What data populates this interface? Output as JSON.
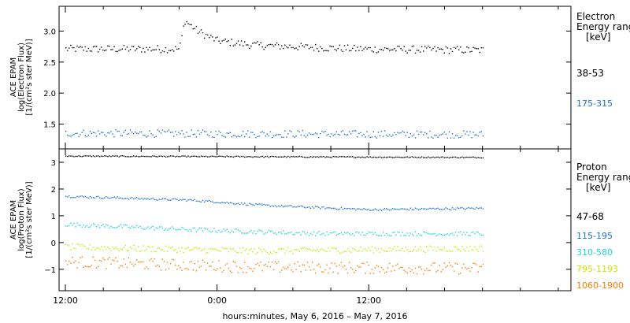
{
  "chart_data": [
    {
      "type": "scatter",
      "panel": "electron",
      "ylabel_lines": [
        "ACE EPAM",
        "log(Electron Flux)",
        "[1/(cm²s ster MeV)]"
      ],
      "y_ticks": [
        1.5,
        2.0,
        2.5,
        3.0
      ],
      "y_tick_labels": [
        "1.5",
        "2.0",
        "2.5",
        "3.0"
      ],
      "ylim": [
        1.1,
        3.4
      ],
      "legend_title_lines": [
        "Electron",
        "Energy ranges",
        "[keV]"
      ],
      "series": [
        {
          "name": "38-53",
          "color": "#000000",
          "base": 2.72,
          "noise": 0.06,
          "trend": [
            [
              0,
              2.72
            ],
            [
              9,
              2.72
            ],
            [
              9.4,
              3.18
            ],
            [
              10.5,
              3.0
            ],
            [
              12,
              2.85
            ],
            [
              15,
              2.78
            ],
            [
              23,
              2.72
            ],
            [
              33,
              2.7
            ]
          ]
        },
        {
          "name": "175-315",
          "color": "#1c6fd6",
          "base": 1.35,
          "noise": 0.06,
          "trend": [
            [
              0,
              1.36
            ],
            [
              33,
              1.34
            ]
          ]
        }
      ]
    },
    {
      "type": "scatter",
      "panel": "proton",
      "ylabel_lines": [
        "ACE EPAM",
        "log(Proton Flux)",
        "[1/(cm²s ster MeV)]"
      ],
      "y_ticks": [
        -1,
        0,
        1,
        2,
        3
      ],
      "y_tick_labels": [
        "−1",
        "0",
        "1",
        "2",
        "3"
      ],
      "ylim": [
        -1.8,
        3.5
      ],
      "legend_title_lines": [
        "Proton",
        "Energy ranges",
        "[keV]"
      ],
      "series": [
        {
          "name": "47-68",
          "color": "#000000",
          "noise": 0.02,
          "trend": [
            [
              0,
              3.25
            ],
            [
              33,
              3.2
            ]
          ]
        },
        {
          "name": "115-195",
          "color": "#1c6fd6",
          "noise": 0.04,
          "trend": [
            [
              0,
              1.75
            ],
            [
              10,
              1.6
            ],
            [
              16,
              1.4
            ],
            [
              24,
              1.25
            ],
            [
              33,
              1.3
            ]
          ]
        },
        {
          "name": "310-580",
          "color": "#1fd6d6",
          "noise": 0.08,
          "trend": [
            [
              0,
              0.7
            ],
            [
              10,
              0.5
            ],
            [
              20,
              0.35
            ],
            [
              33,
              0.35
            ]
          ]
        },
        {
          "name": "795-1193",
          "color": "#c8e600",
          "noise": 0.12,
          "trend": [
            [
              0,
              -0.15
            ],
            [
              15,
              -0.3
            ],
            [
              33,
              -0.2
            ]
          ]
        },
        {
          "name": "1060-1900",
          "color": "#ff7b00",
          "noise": 0.22,
          "trend": [
            [
              0,
              -0.7
            ],
            [
              15,
              -0.9
            ],
            [
              33,
              -0.95
            ]
          ]
        }
      ]
    }
  ],
  "x_axis": {
    "range_hours": [
      -0.5,
      40
    ],
    "data_end_hours": 33,
    "tick_hours": [
      0,
      12,
      24
    ],
    "tick_labels": [
      "12:00",
      "0:00",
      "12:00"
    ],
    "xlabel": "hours:minutes, May  6, 2016 – May  7, 2016"
  }
}
